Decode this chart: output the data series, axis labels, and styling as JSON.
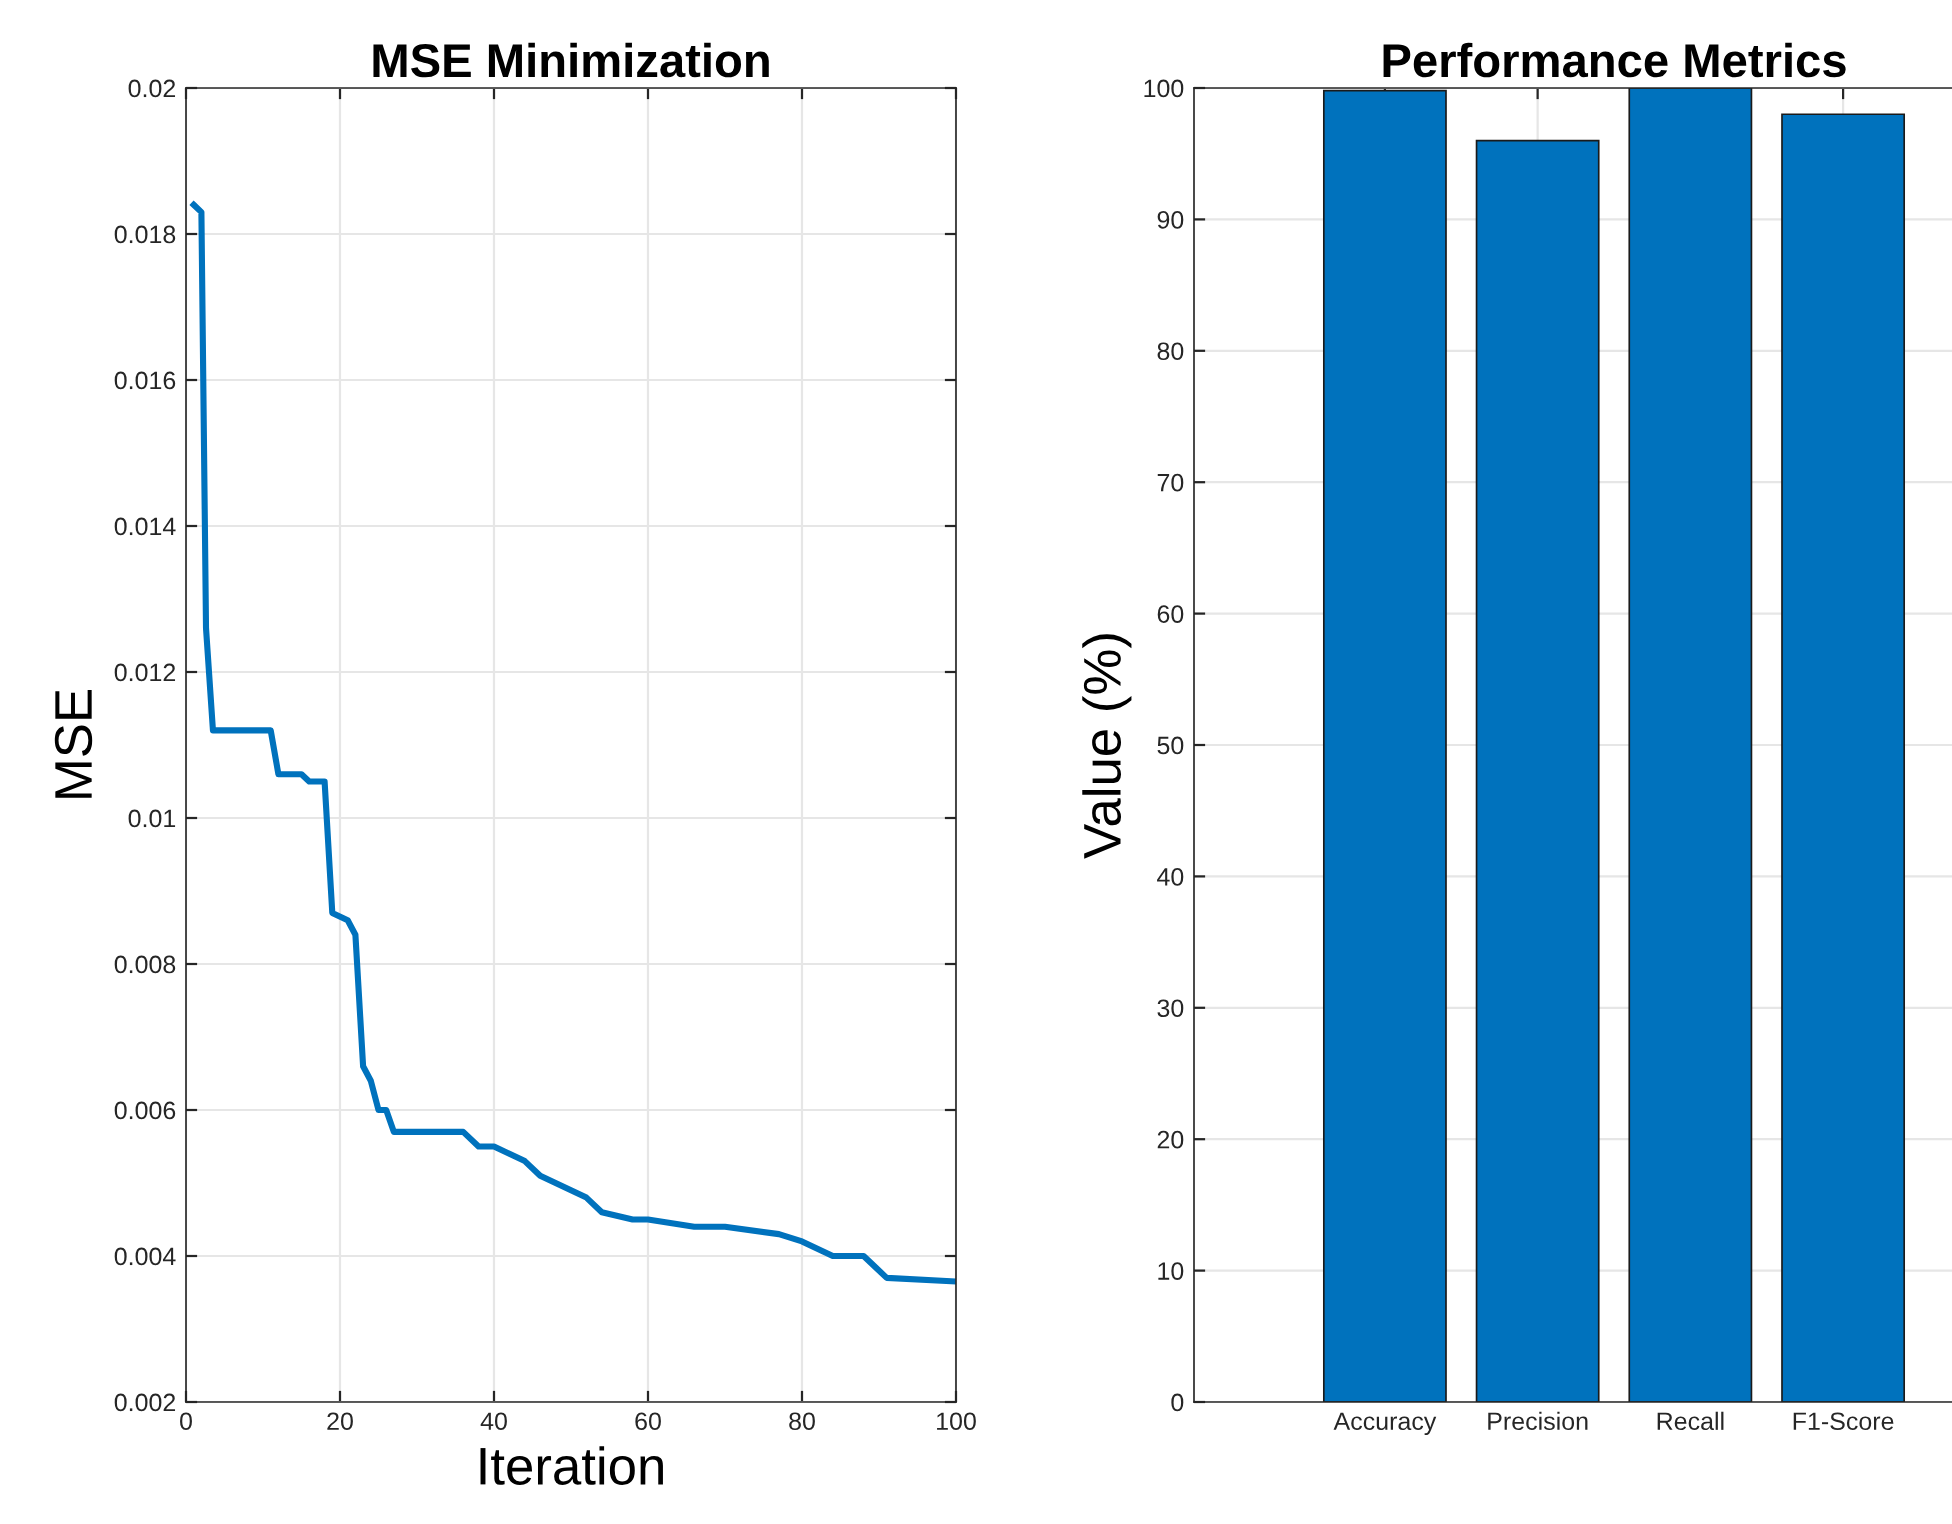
{
  "chart_data": [
    {
      "type": "line",
      "title": "MSE Minimization",
      "xlabel": "Iteration",
      "ylabel": "MSE",
      "x": [
        1,
        2,
        2.6,
        3.5,
        11,
        12,
        15,
        16,
        18,
        19,
        21,
        22,
        23,
        24,
        25,
        26,
        27,
        36,
        38,
        40,
        42,
        44,
        46,
        48,
        50,
        52,
        54,
        58,
        60,
        66,
        70,
        77,
        80,
        82,
        84,
        88,
        89,
        91,
        100
      ],
      "series": [
        {
          "color": "#0072bd",
          "values": [
            0.0184,
            0.0183,
            0.0126,
            0.0112,
            0.0112,
            0.0106,
            0.0106,
            0.0105,
            0.0105,
            0.0087,
            0.0086,
            0.0084,
            0.0066,
            0.0064,
            0.006,
            0.006,
            0.0057,
            0.0057,
            0.0055,
            0.0055,
            0.0054,
            0.0053,
            0.0051,
            0.005,
            0.0049,
            0.0048,
            0.0046,
            0.0045,
            0.0045,
            0.0044,
            0.0044,
            0.0043,
            0.0042,
            0.0041,
            0.004,
            0.004,
            0.0039,
            0.0037,
            0.00365
          ]
        }
      ],
      "xlim": [
        0,
        100
      ],
      "xticks": [
        0,
        20,
        40,
        60,
        80,
        100
      ],
      "ylim": [
        0.002,
        0.02
      ],
      "yticks": [
        0.002,
        0.004,
        0.006,
        0.008,
        0.01,
        0.012,
        0.014,
        0.016,
        0.018,
        0.02
      ],
      "grid": true,
      "line_style": "solid"
    },
    {
      "type": "bar",
      "title": "Performance Metrics",
      "ylabel": "Value (%)",
      "categories": [
        "Accuracy",
        "Precision",
        "Recall",
        "F1-Score"
      ],
      "series": [
        {
          "color": "#0072bd",
          "values": [
            99.8,
            96.0,
            100,
            98.0
          ]
        }
      ],
      "ylim": [
        0,
        100
      ],
      "yticks": [
        0,
        10,
        20,
        30,
        40,
        50,
        60,
        70,
        80,
        90,
        100
      ],
      "grid": true
    }
  ]
}
